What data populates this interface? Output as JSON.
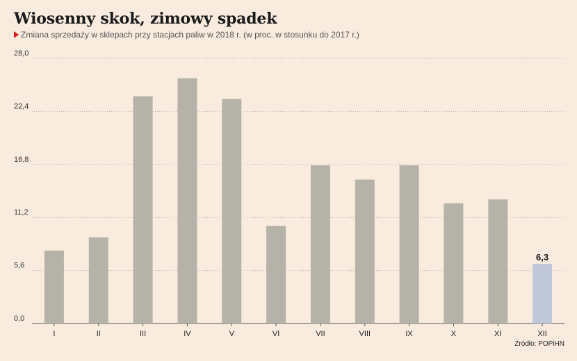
{
  "title": "Wiosenny skok, zimowy spadek",
  "subtitle": "Zmiana sprzedaży w sklepach przy stacjach paliw w 2018 r. (w proc. w stosunku do 2017 r.)",
  "source": "Źródło: POPiHN",
  "colors": {
    "bar": "#b5b3a8",
    "highlight": "#c0c7d9",
    "grid": "#b8b0a4",
    "marker": "#d21e1e",
    "background": "#f9ecdf"
  },
  "chart_data": {
    "type": "bar",
    "categories": [
      "I",
      "II",
      "III",
      "IV",
      "V",
      "VI",
      "VII",
      "VIII",
      "IX",
      "X",
      "XI",
      "XII"
    ],
    "values": [
      7.7,
      9.1,
      24.0,
      25.9,
      23.7,
      10.3,
      16.7,
      15.2,
      16.7,
      12.7,
      13.1,
      6.3
    ],
    "ylim": [
      0,
      28
    ],
    "yticks": [
      "0,0",
      "5,6",
      "11,2",
      "16,8",
      "22,4",
      "28,0"
    ],
    "ytick_values": [
      0,
      5.6,
      11.2,
      16.8,
      22.4,
      28.0
    ],
    "highlight_index": 11,
    "data_labels": [
      {
        "index": 11,
        "text": "6,3"
      }
    ],
    "grid": "horizontal dotted",
    "xlabel": "",
    "ylabel": ""
  }
}
